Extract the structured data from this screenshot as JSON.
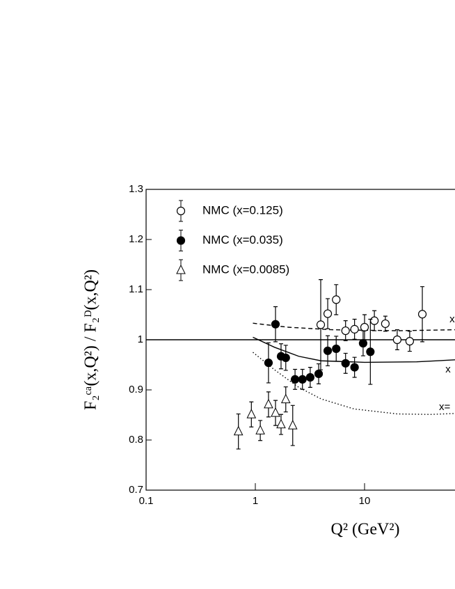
{
  "chart_data": {
    "type": "scatter",
    "x_label": "Q² (GeV²)",
    "y_label": "F₂ᶜᵃ(x,Q²) / F₂ᴰ(x,Q²)",
    "xlim": [
      0.1,
      100
    ],
    "xticks": [
      0.1,
      1,
      10
    ],
    "log_x": true,
    "ylim": [
      0.7,
      1.3
    ],
    "yticks": [
      0.7,
      0.8,
      0.9,
      1,
      1.1,
      1.2,
      1.3
    ],
    "hline": 1,
    "series": [
      {
        "name": "NMC (x=0.125)",
        "marker": "open-circle",
        "color": "#000000",
        "x": [
          3.97,
          4.6,
          5.5,
          6.7,
          8.1,
          10,
          12.3,
          15.5,
          19.9,
          25.9,
          33.8
        ],
        "values": [
          1.03,
          1.052,
          1.08,
          1.018,
          1.021,
          1.025,
          1.038,
          1.032,
          1.0,
          0.997,
          1.051
        ],
        "errors": [
          0.09,
          0.03,
          0.03,
          0.02,
          0.02,
          0.025,
          0.02,
          0.015,
          0.02,
          0.02,
          0.055
        ]
      },
      {
        "name": "NMC (x=0.035)",
        "marker": "filled-circle",
        "color": "#000000",
        "x": [
          1.32,
          1.53,
          1.72,
          1.9,
          2.31,
          2.7,
          3.18,
          3.8,
          4.6,
          5.5,
          6.7,
          8.1,
          9.7,
          11.3
        ],
        "values": [
          0.954,
          1.031,
          0.967,
          0.964,
          0.921,
          0.921,
          0.925,
          0.932,
          0.978,
          0.982,
          0.953,
          0.945,
          0.993,
          0.976
        ],
        "errors": [
          0.04,
          0.035,
          0.025,
          0.025,
          0.02,
          0.02,
          0.02,
          0.02,
          0.03,
          0.025,
          0.02,
          0.02,
          0.025,
          0.065
        ]
      },
      {
        "name": "NMC (x=0.0085)",
        "marker": "open-triangle",
        "color": "#000000",
        "x": [
          0.7,
          0.92,
          1.11,
          1.32,
          1.53,
          1.72,
          1.9,
          2.2
        ],
        "values": [
          0.817,
          0.851,
          0.819,
          0.871,
          0.854,
          0.831,
          0.881,
          0.829
        ],
        "errors": [
          0.035,
          0.025,
          0.02,
          0.025,
          0.025,
          0.02,
          0.025,
          0.04
        ]
      }
    ],
    "curves": [
      {
        "style": "dashed",
        "x": [
          0.95,
          2,
          5,
          20,
          68
        ],
        "values": [
          1.033,
          1.025,
          1.02,
          1.018,
          1.02
        ]
      },
      {
        "style": "solid",
        "x": [
          0.95,
          1.5,
          2.5,
          4,
          10,
          30,
          68
        ],
        "values": [
          1.005,
          0.985,
          0.967,
          0.958,
          0.955,
          0.956,
          0.96
        ]
      },
      {
        "style": "dotted",
        "x": [
          0.95,
          1.5,
          2.5,
          4,
          8,
          20,
          40,
          68
        ],
        "values": [
          0.975,
          0.94,
          0.905,
          0.882,
          0.862,
          0.852,
          0.851,
          0.853
        ]
      }
    ],
    "annotations": [
      {
        "text": "x",
        "x": 60,
        "y": 1.04
      },
      {
        "text": "x",
        "x": 55,
        "y": 0.94
      },
      {
        "text": "x=",
        "x": 48,
        "y": 0.865
      }
    ]
  }
}
